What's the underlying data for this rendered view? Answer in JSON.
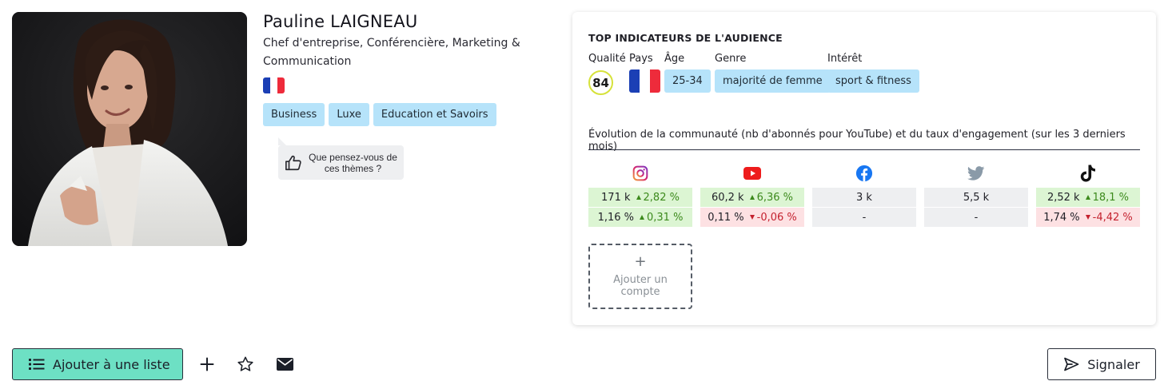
{
  "profile": {
    "name": "Pauline LAIGNEAU",
    "subtitle": "Chef d'entreprise, Conférencière, Marketing & Communication",
    "photo_alt": "Pauline LAIGNEAU",
    "country_flag": "france-flag-icon",
    "tags": [
      "Business",
      "Luxe",
      "Education et Savoirs"
    ],
    "feedback": "Que pensez-vous de ces thèmes ?"
  },
  "audience": {
    "title": "TOP INDICATEURS DE L'AUDIENCE",
    "labels": {
      "quality": "Qualité",
      "country": "Pays",
      "age": "Âge",
      "gender": "Genre",
      "interest": "Intérêt"
    },
    "quality_score": "84",
    "age": "25-34",
    "gender": "majorité de femme",
    "interest": "sport & fitness"
  },
  "evolution": {
    "title": "Évolution de la communauté (nb d'abonnés pour YouTube) et du taux d'engagement (sur les 3 derniers mois)",
    "networks": [
      {
        "icon": "instagram-icon",
        "followers": "171 k",
        "followers_change": "2,82 %",
        "followers_trend": "up",
        "engagement": "1,16 %",
        "engagement_change": "0,31 %",
        "engagement_trend": "up"
      },
      {
        "icon": "youtube-icon",
        "followers": "60,2 k",
        "followers_change": "6,36 %",
        "followers_trend": "up",
        "engagement": "0,11 %",
        "engagement_change": "-0,06 %",
        "engagement_trend": "down"
      },
      {
        "icon": "facebook-icon",
        "followers": "3 k",
        "followers_change": "",
        "followers_trend": "none",
        "engagement": "-",
        "engagement_change": "",
        "engagement_trend": "none"
      },
      {
        "icon": "twitter-icon",
        "followers": "5,5 k",
        "followers_change": "",
        "followers_trend": "none",
        "engagement": "-",
        "engagement_change": "",
        "engagement_trend": "none"
      },
      {
        "icon": "tiktok-icon",
        "followers": "2,52 k",
        "followers_change": "18,1 %",
        "followers_trend": "up",
        "engagement": "1,74 %",
        "engagement_change": "-4,42 %",
        "engagement_trend": "down"
      }
    ],
    "add_account_plus": "+",
    "add_account": "Ajouter un compte"
  },
  "actions": {
    "add_to_list": "Ajouter à une liste",
    "report": "Signaler"
  },
  "colors": {
    "accent_button": "#6de0c4",
    "tag_bg": "#b6e3fa",
    "positive_bg": "#dcf5d3",
    "negative_bg": "#fde1e3",
    "neutral_bg": "#eeeff1",
    "quality_ring": "#d6e23a"
  }
}
